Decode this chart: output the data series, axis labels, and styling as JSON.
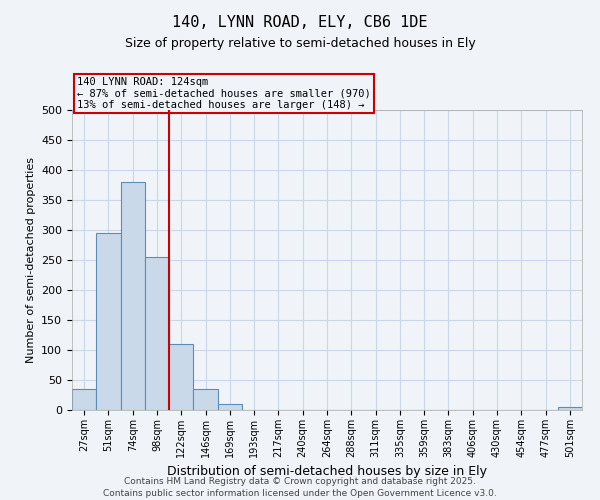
{
  "title1": "140, LYNN ROAD, ELY, CB6 1DE",
  "title2": "Size of property relative to semi-detached houses in Ely",
  "xlabel": "Distribution of semi-detached houses by size in Ely",
  "ylabel": "Number of semi-detached properties",
  "categories": [
    "27sqm",
    "51sqm",
    "74sqm",
    "98sqm",
    "122sqm",
    "146sqm",
    "169sqm",
    "193sqm",
    "217sqm",
    "240sqm",
    "264sqm",
    "288sqm",
    "311sqm",
    "335sqm",
    "359sqm",
    "383sqm",
    "406sqm",
    "430sqm",
    "454sqm",
    "477sqm",
    "501sqm"
  ],
  "values": [
    35,
    295,
    380,
    255,
    110,
    35,
    10,
    0,
    0,
    0,
    0,
    0,
    0,
    0,
    0,
    0,
    0,
    0,
    0,
    0,
    5
  ],
  "bar_color_fill": "#c9d9ea",
  "bar_color_edge": "#5b8db8",
  "vline_x": 3.5,
  "vline_color": "#cc0000",
  "annotation_text": "140 LYNN ROAD: 124sqm\n← 87% of semi-detached houses are smaller (970)\n13% of semi-detached houses are larger (148) →",
  "annotation_box_color": "#cc0000",
  "annotation_text_color": "#000000",
  "ylim": [
    0,
    500
  ],
  "yticks": [
    0,
    50,
    100,
    150,
    200,
    250,
    300,
    350,
    400,
    450,
    500
  ],
  "grid_color": "#c8d8e8",
  "background_color": "#f0f4f8",
  "plot_bg_color": "#ffffff",
  "footer": "Contains HM Land Registry data © Crown copyright and database right 2025.\nContains public sector information licensed under the Open Government Licence v3.0."
}
